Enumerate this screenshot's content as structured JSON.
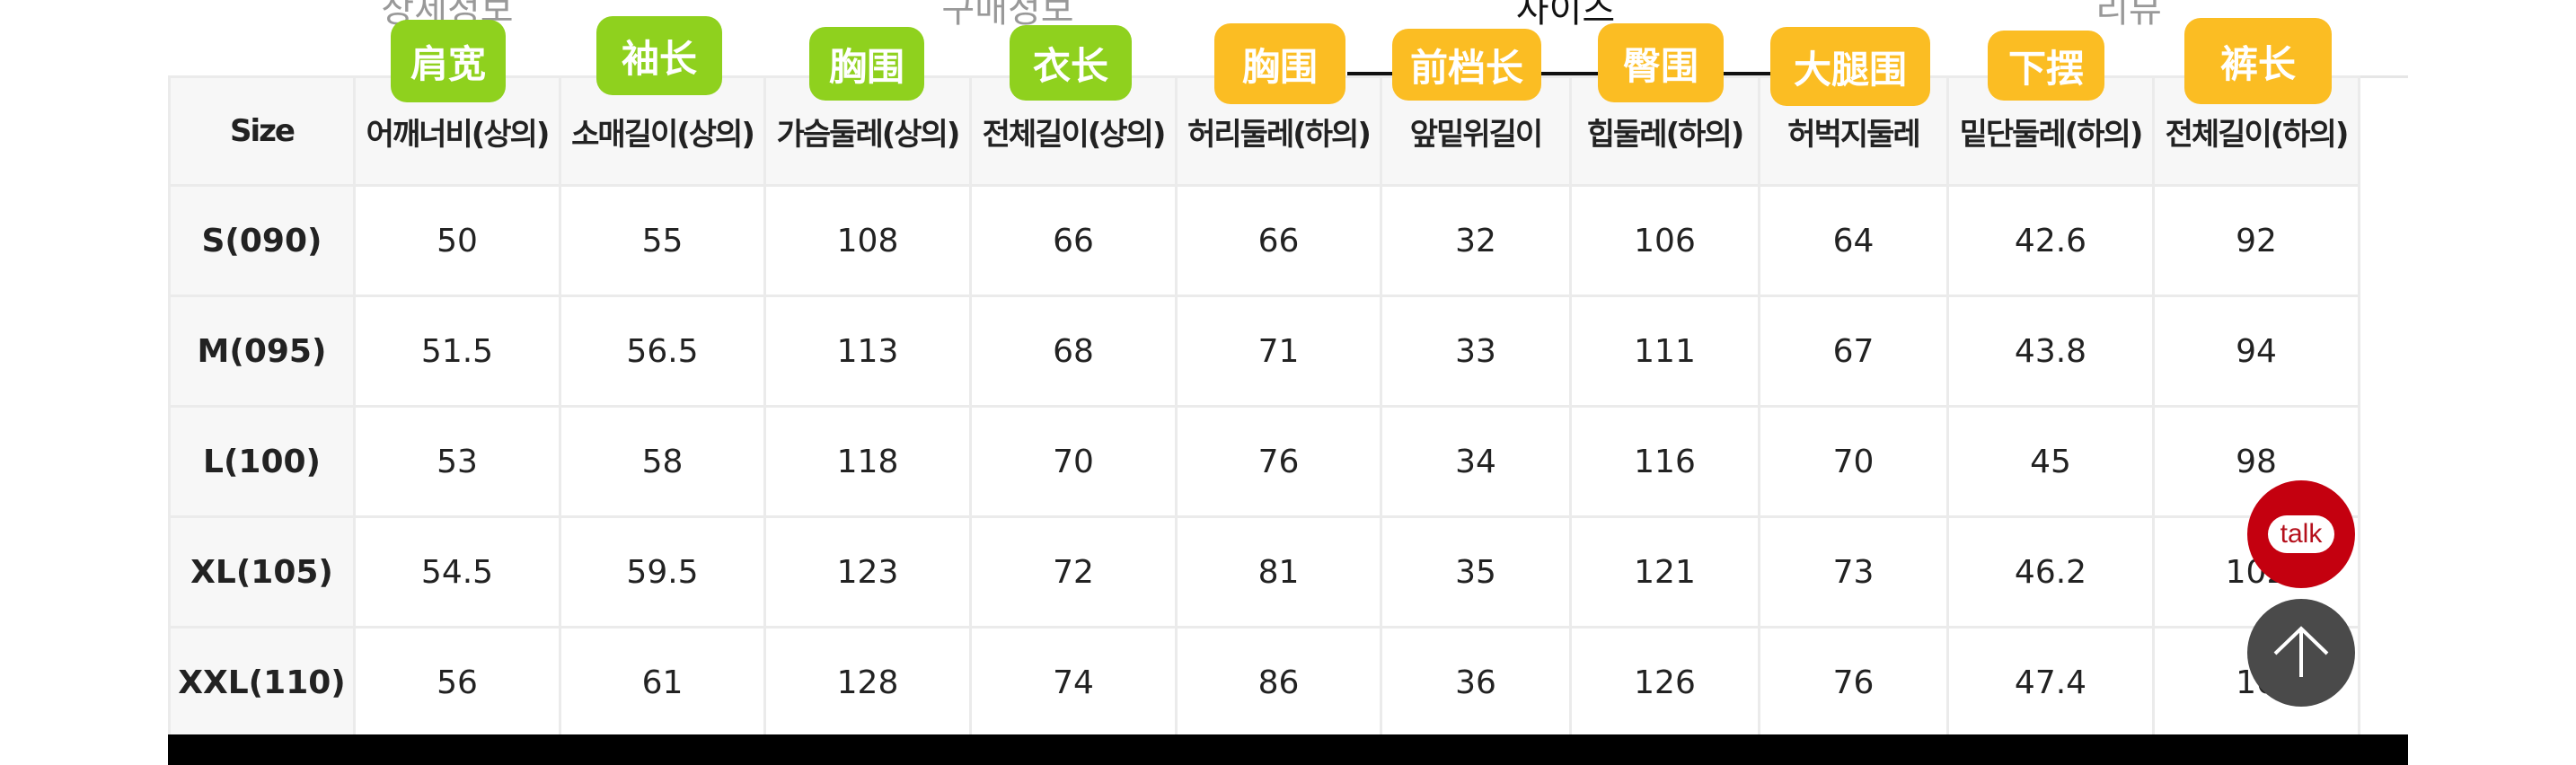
{
  "tabs": [
    {
      "label": "상세정보"
    },
    {
      "label": "구매정보"
    },
    {
      "label": "사이즈",
      "active": true
    },
    {
      "label": "리뷰"
    }
  ],
  "table": {
    "headers": [
      "Size",
      "어깨너비(상의)",
      "소매길이(상의)",
      "가슴둘레(상의)",
      "전체길이(상의)",
      "허리둘레(하의)",
      "앞밑위길이",
      "힙둘레(하의)",
      "허벅지둘레",
      "밑단둘레(하의)",
      "전체길이(하의)"
    ],
    "rows": [
      [
        "S(090)",
        "50",
        "55",
        "108",
        "66",
        "66",
        "32",
        "106",
        "64",
        "42.6",
        "92"
      ],
      [
        "M(095)",
        "51.5",
        "56.5",
        "113",
        "68",
        "71",
        "33",
        "111",
        "67",
        "43.8",
        "94"
      ],
      [
        "L(100)",
        "53",
        "58",
        "118",
        "70",
        "76",
        "34",
        "116",
        "70",
        "45",
        "98"
      ],
      [
        "XL(105)",
        "54.5",
        "59.5",
        "123",
        "72",
        "81",
        "35",
        "121",
        "73",
        "46.2",
        "102"
      ],
      [
        "XXL(110)",
        "56",
        "61",
        "128",
        "74",
        "86",
        "36",
        "126",
        "76",
        "47.4",
        "10"
      ]
    ]
  },
  "badges": [
    {
      "label": "肩宽",
      "color": "#8fd11e"
    },
    {
      "label": "袖长",
      "color": "#8fd11e"
    },
    {
      "label": "胸围",
      "color": "#8fd11e"
    },
    {
      "label": "衣长",
      "color": "#8fd11e"
    },
    {
      "label": "胸围",
      "color": "#fbbd23"
    },
    {
      "label": "前档长",
      "color": "#fbbd23"
    },
    {
      "label": "臀围",
      "color": "#fbbd23"
    },
    {
      "label": "大腿围",
      "color": "#fbbd23"
    },
    {
      "label": "下摆",
      "color": "#fbbd23"
    },
    {
      "label": "裤长",
      "color": "#fbbd23"
    }
  ],
  "floating": {
    "talk_label": "talk",
    "talk_color": "#c4000f",
    "scroll_top_icon": "arrow-up-icon"
  }
}
